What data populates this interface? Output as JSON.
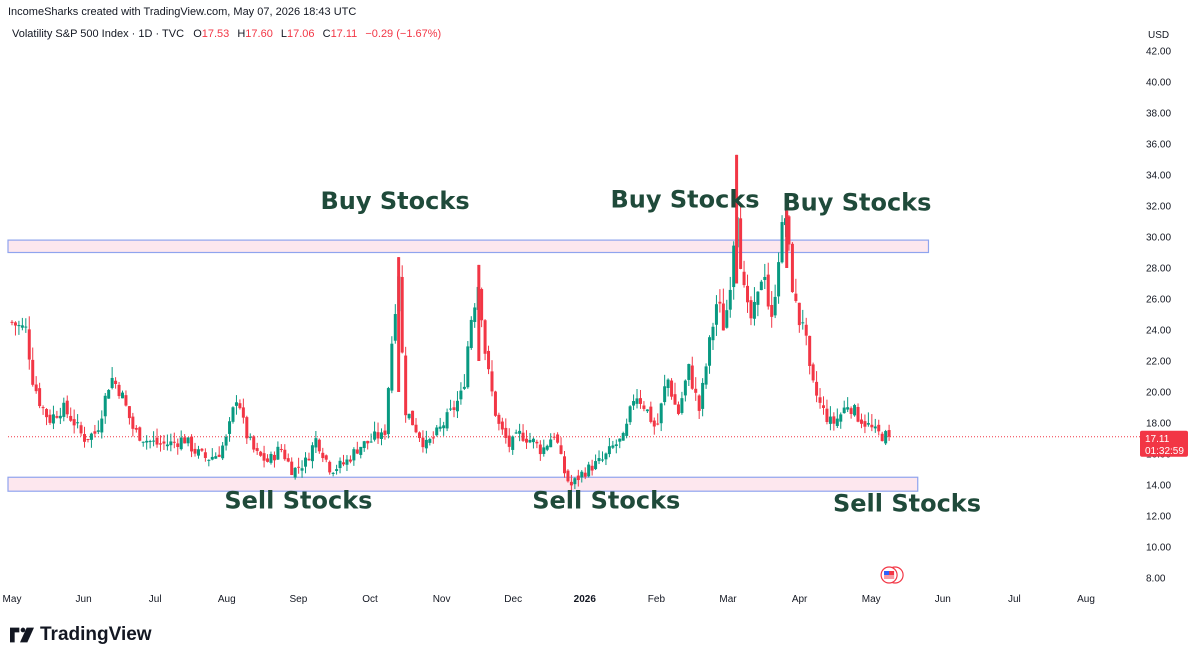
{
  "header": {
    "attribution": "IncomeSharks created with TradingView.com, May 07, 2026 18:43 UTC",
    "symbol": "Volatility S&P 500 Index · 1D · TVC",
    "open_label": "O",
    "open": "17.53",
    "high_label": "H",
    "high": "17.60",
    "low_label": "L",
    "low": "17.06",
    "close_label": "C",
    "close": "17.11",
    "change": "−0.29 (−1.67%)"
  },
  "price_badge": {
    "price": "17.11",
    "countdown": "01:32:59"
  },
  "brand": {
    "name": "TradingView",
    "icon": "tradingview-logo-icon"
  },
  "colors": {
    "up": "#089981",
    "down": "#f23645",
    "zone_fill": "#fde7ee",
    "zone_border": "#8fa4ee",
    "annotation": "#1f4a3a"
  },
  "chart_data": {
    "type": "candlestick",
    "currency": "USD",
    "ylim": [
      7,
      43
    ],
    "y_ticks": [
      "8.00",
      "10.00",
      "12.00",
      "14.00",
      "16.00",
      "18.00",
      "20.00",
      "22.00",
      "24.00",
      "26.00",
      "28.00",
      "30.00",
      "32.00",
      "34.00",
      "36.00",
      "38.00",
      "40.00",
      "42.00"
    ],
    "x_ticks": [
      {
        "label": "May",
        "x": 0
      },
      {
        "label": "Jun",
        "x": 1
      },
      {
        "label": "Jul",
        "x": 2
      },
      {
        "label": "Aug",
        "x": 3
      },
      {
        "label": "Sep",
        "x": 4
      },
      {
        "label": "Oct",
        "x": 5
      },
      {
        "label": "Nov",
        "x": 6
      },
      {
        "label": "Dec",
        "x": 7
      },
      {
        "label": "2026",
        "x": 8,
        "bold": true
      },
      {
        "label": "Feb",
        "x": 9
      },
      {
        "label": "Mar",
        "x": 10
      },
      {
        "label": "Apr",
        "x": 11
      },
      {
        "label": "May",
        "x": 12
      },
      {
        "label": "Jun",
        "x": 13
      },
      {
        "label": "Jul",
        "x": 14
      },
      {
        "label": "Aug",
        "x": 15
      }
    ],
    "last_price": 17.11,
    "zones": [
      {
        "name": "buy-zone",
        "low": 29.0,
        "high": 29.8,
        "x_end": 12.8
      },
      {
        "name": "sell-zone",
        "low": 13.6,
        "high": 14.5,
        "x_end": 12.65
      }
    ],
    "annotations": [
      {
        "text": "Buy Stocks",
        "x": 5.35,
        "y": 31.8
      },
      {
        "text": "Buy Stocks",
        "x": 9.4,
        "y": 31.9
      },
      {
        "text": "Buy Stocks",
        "x": 11.8,
        "y": 31.7
      },
      {
        "text": "Sell Stocks",
        "x": 4.0,
        "y": 12.5
      },
      {
        "text": "Sell Stocks",
        "x": 8.3,
        "y": 12.5
      },
      {
        "text": "Sell Stocks",
        "x": 12.5,
        "y": 12.3
      }
    ],
    "anchors": [
      [
        0.0,
        24.5
      ],
      [
        0.1,
        24.2
      ],
      [
        0.2,
        24.0
      ],
      [
        0.28,
        21.0
      ],
      [
        0.4,
        19.2
      ],
      [
        0.52,
        18.2
      ],
      [
        0.7,
        19.0
      ],
      [
        0.85,
        18.2
      ],
      [
        1.0,
        17.0
      ],
      [
        1.18,
        17.4
      ],
      [
        1.38,
        21.0
      ],
      [
        1.52,
        20.0
      ],
      [
        1.7,
        17.5
      ],
      [
        1.88,
        16.9
      ],
      [
        2.05,
        16.6
      ],
      [
        2.25,
        16.7
      ],
      [
        2.4,
        17.0
      ],
      [
        2.55,
        16.2
      ],
      [
        2.72,
        15.7
      ],
      [
        2.88,
        16.0
      ],
      [
        3.0,
        17.0
      ],
      [
        3.15,
        20.0
      ],
      [
        3.25,
        17.5
      ],
      [
        3.4,
        16.0
      ],
      [
        3.58,
        15.5
      ],
      [
        3.75,
        16.4
      ],
      [
        3.92,
        14.9
      ],
      [
        4.1,
        15.5
      ],
      [
        4.25,
        17.0
      ],
      [
        4.45,
        15.0
      ],
      [
        4.65,
        15.4
      ],
      [
        4.85,
        16.5
      ],
      [
        5.0,
        16.8
      ],
      [
        5.1,
        17.2
      ],
      [
        5.2,
        17.0
      ],
      [
        5.3,
        23.0
      ],
      [
        5.4,
        28.0
      ],
      [
        5.48,
        19.0
      ],
      [
        5.6,
        18.0
      ],
      [
        5.78,
        16.5
      ],
      [
        5.95,
        17.4
      ],
      [
        6.15,
        18.8
      ],
      [
        6.3,
        20.0
      ],
      [
        6.4,
        24.5
      ],
      [
        6.52,
        27.2
      ],
      [
        6.62,
        22.0
      ],
      [
        6.78,
        18.0
      ],
      [
        6.95,
        16.5
      ],
      [
        7.1,
        17.3
      ],
      [
        7.28,
        16.8
      ],
      [
        7.4,
        16.2
      ],
      [
        7.58,
        17.4
      ],
      [
        7.7,
        15.0
      ],
      [
        7.8,
        13.9
      ],
      [
        7.95,
        14.7
      ],
      [
        8.1,
        15.2
      ],
      [
        8.25,
        15.6
      ],
      [
        8.4,
        16.5
      ],
      [
        8.55,
        17.0
      ],
      [
        8.7,
        20.0
      ],
      [
        8.85,
        19.0
      ],
      [
        9.0,
        17.5
      ],
      [
        9.15,
        21.0
      ],
      [
        9.3,
        18.5
      ],
      [
        9.45,
        21.5
      ],
      [
        9.6,
        18.8
      ],
      [
        9.72,
        22.5
      ],
      [
        9.85,
        26.0
      ],
      [
        9.95,
        24.0
      ],
      [
        10.05,
        28.0
      ],
      [
        10.12,
        32.5
      ],
      [
        10.2,
        27.0
      ],
      [
        10.3,
        24.5
      ],
      [
        10.4,
        25.5
      ],
      [
        10.5,
        28.5
      ],
      [
        10.6,
        24.0
      ],
      [
        10.72,
        29.5
      ],
      [
        10.8,
        31.5
      ],
      [
        10.88,
        27.5
      ],
      [
        10.98,
        24.5
      ],
      [
        11.05,
        24.8
      ],
      [
        11.15,
        20.8
      ],
      [
        11.3,
        19.0
      ],
      [
        11.45,
        17.9
      ],
      [
        11.55,
        18.4
      ],
      [
        11.68,
        19.3
      ],
      [
        11.8,
        18.5
      ],
      [
        11.92,
        18.0
      ],
      [
        12.05,
        17.4
      ],
      [
        12.15,
        17.2
      ],
      [
        12.25,
        17.11
      ]
    ]
  }
}
